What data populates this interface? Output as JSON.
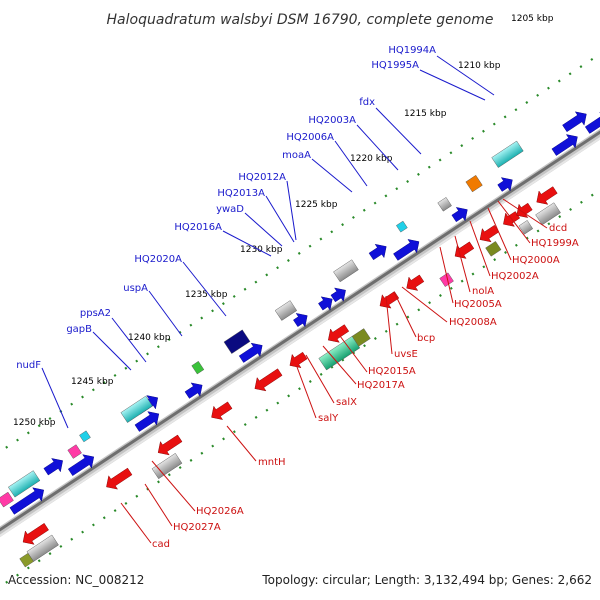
{
  "title": "Haloquadratum walsbyi DSM 16790, complete genome",
  "footer": {
    "accession": "Accession: NC_008212",
    "summary": "Topology: circular; Length: 3,132,494 bp; Genes: 2,662"
  },
  "colors": {
    "forward_label": "#1a1acc",
    "reverse_label": "#cc1111",
    "backbone": "#8c8c8c",
    "tick": "#2a8a2a"
  },
  "scale_labels": [
    "1205 kbp",
    "1210 kbp",
    "1215 kbp",
    "1220 kbp",
    "1225 kbp",
    "1230 kbp",
    "1235 kbp",
    "1240 kbp",
    "1245 kbp",
    "1250 kbp"
  ],
  "forward_gene_labels": [
    "HQ1994A",
    "HQ1995A",
    "fdx",
    "HQ2003A",
    "HQ2006A",
    "moaA",
    "HQ2012A",
    "HQ2013A",
    "ywaD",
    "HQ2016A",
    "HQ2020A",
    "uspA",
    "ppsA2",
    "gapB",
    "nudF"
  ],
  "reverse_gene_labels": [
    "dcd",
    "HQ1999A",
    "HQ2000A",
    "HQ2002A",
    "nolA",
    "HQ2005A",
    "HQ2008A",
    "bcp",
    "uvsE",
    "HQ2015A",
    "HQ2017A",
    "salX",
    "salY",
    "mntH",
    "HQ2026A",
    "HQ2027A",
    "cad"
  ]
}
